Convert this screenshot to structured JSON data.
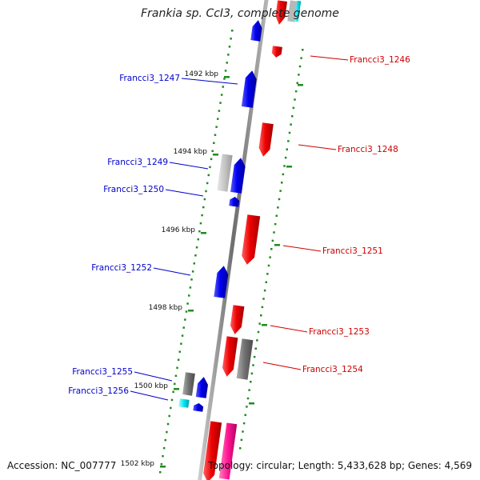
{
  "title": "Frankia sp. CcI3, complete genome",
  "accession": "Accession: NC_007777",
  "topology": "Topology: circular; Length: 5,433,628 bp; Genes: 4,569",
  "colors": {
    "backbone": "#8c8c8c",
    "tick": "#228b22",
    "forward": "#0000ee",
    "reverse": "#ee0000",
    "pseudo": "#808080",
    "trna": "#00e5ee",
    "rrna": "#ff1493"
  },
  "ticks": [
    {
      "label": "1492 kbp"
    },
    {
      "label": "1494 kbp"
    },
    {
      "label": "1496 kbp"
    },
    {
      "label": "1498 kbp"
    },
    {
      "label": "1500 kbp"
    },
    {
      "label": "1502 kbp"
    }
  ],
  "genes": [
    {
      "name": "Francci3_1246",
      "side": "right"
    },
    {
      "name": "Francci3_1247",
      "side": "left"
    },
    {
      "name": "Francci3_1248",
      "side": "right"
    },
    {
      "name": "Francci3_1249",
      "side": "left"
    },
    {
      "name": "Francci3_1250",
      "side": "left"
    },
    {
      "name": "Francci3_1251",
      "side": "right"
    },
    {
      "name": "Francci3_1252",
      "side": "left"
    },
    {
      "name": "Francci3_1253",
      "side": "right"
    },
    {
      "name": "Francci3_1254",
      "side": "right"
    },
    {
      "name": "Francci3_1255",
      "side": "left"
    },
    {
      "name": "Francci3_1256",
      "side": "left"
    }
  ]
}
